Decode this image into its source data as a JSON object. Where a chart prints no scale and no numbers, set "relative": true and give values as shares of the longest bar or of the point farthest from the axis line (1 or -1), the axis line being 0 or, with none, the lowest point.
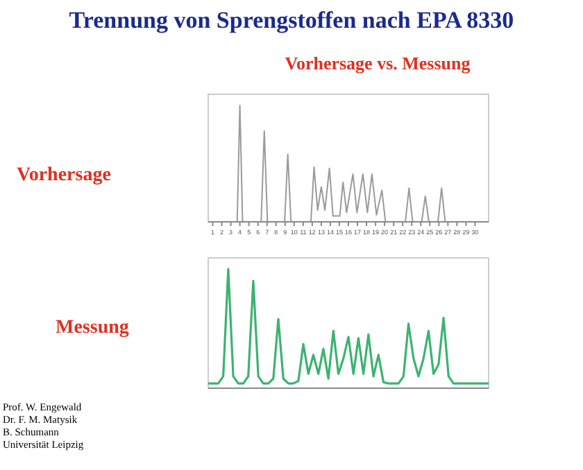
{
  "chart_data": [
    {
      "type": "line",
      "title": "Trennung von Sprengstoffen nach EPA 8330",
      "subtitle": "Vorhersage vs. Messung",
      "annotations": [
        "Vorhersage"
      ],
      "relative": true,
      "xlim": [
        0.5,
        31.5
      ],
      "xticks": [
        1,
        2,
        3,
        4,
        5,
        6,
        7,
        8,
        9,
        10,
        11,
        12,
        13,
        14,
        15,
        16,
        17,
        18,
        19,
        20,
        21,
        22,
        23,
        24,
        25,
        26,
        27,
        28,
        29,
        30
      ],
      "tick_labels": "x",
      "series": [
        {
          "color": "#9a9a9a",
          "x": [
            0.5,
            3.7,
            4.0,
            4.3,
            6.35,
            6.7,
            7.05,
            8.95,
            9.3,
            9.65,
            11.85,
            12.2,
            12.6,
            13.0,
            13.4,
            13.9,
            14.3,
            15.05,
            15.4,
            15.8,
            16.5,
            16.95,
            17.6,
            18.1,
            18.6,
            19.1,
            19.7,
            20.1,
            22.3,
            22.7,
            23.1,
            24.1,
            24.5,
            24.9,
            25.9,
            26.3,
            26.7,
            31.5
          ],
          "values": [
            0,
            0,
            1.0,
            0,
            0,
            0.78,
            0,
            0,
            0.58,
            0,
            0,
            0.47,
            0.1,
            0.3,
            0.1,
            0.46,
            0.05,
            0.05,
            0.34,
            0.08,
            0.41,
            0.08,
            0.41,
            0.08,
            0.41,
            0.06,
            0.27,
            0,
            0,
            0.29,
            0,
            0,
            0.22,
            0,
            0,
            0.29,
            0,
            0
          ]
        }
      ]
    },
    {
      "type": "line",
      "annotations": [
        "Messung",
        "Prof. W. Engewald",
        "Dr. F. M. Matysik",
        "B. Schumann",
        "Universität Leipzig"
      ],
      "relative": true,
      "categories": [
        null,
        null,
        null,
        null,
        null,
        null,
        null,
        null,
        null,
        null,
        null,
        null,
        null,
        null,
        null,
        null,
        null,
        null,
        null,
        null,
        null,
        null,
        null,
        null,
        null,
        null,
        null,
        null,
        null,
        null,
        null,
        null,
        null,
        null,
        null,
        null,
        null,
        null,
        null,
        null,
        null,
        null,
        null,
        null,
        null,
        null,
        null,
        null,
        null,
        null,
        null,
        null,
        null,
        null,
        null,
        null,
        null
      ],
      "series": [
        {
          "color": "#3cb371",
          "values": [
            0.04,
            0.04,
            0.04,
            0.1,
            1.0,
            0.1,
            0.04,
            0.04,
            0.1,
            0.9,
            0.1,
            0.04,
            0.04,
            0.08,
            0.58,
            0.08,
            0.04,
            0.04,
            0.06,
            0.37,
            0.12,
            0.28,
            0.12,
            0.33,
            0.08,
            0.48,
            0.12,
            0.25,
            0.43,
            0.12,
            0.42,
            0.12,
            0.45,
            0.1,
            0.28,
            0.05,
            0.04,
            0.04,
            0.04,
            0.1,
            0.54,
            0.25,
            0.1,
            0.25,
            0.48,
            0.12,
            0.2,
            0.59,
            0.1,
            0.04,
            0.04,
            0.04,
            0.04,
            0.04,
            0.04,
            0.04,
            0.04
          ]
        }
      ]
    }
  ]
}
